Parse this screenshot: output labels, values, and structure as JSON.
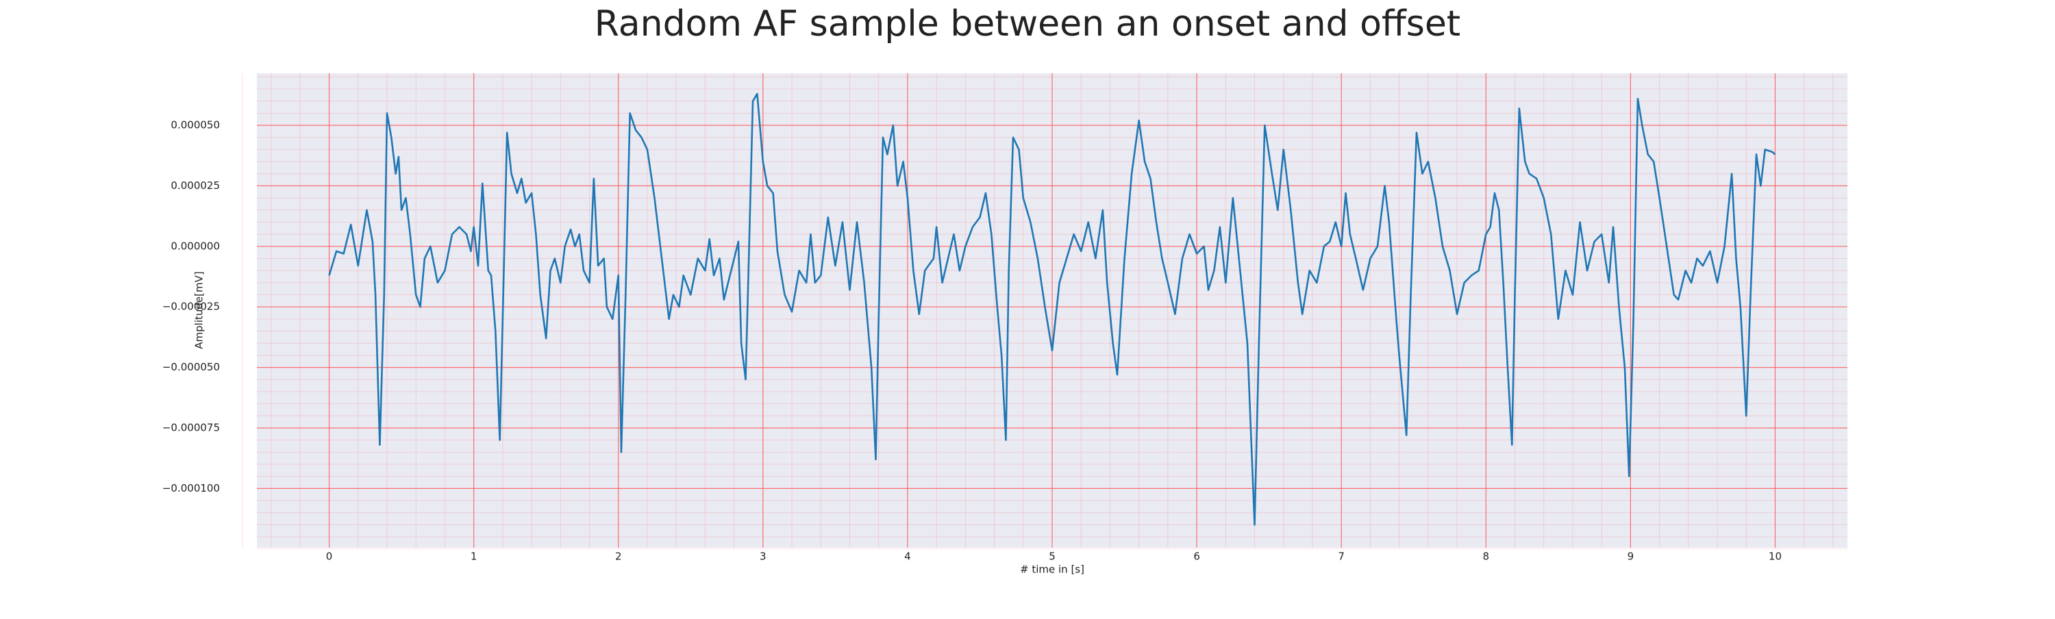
{
  "chart_data": {
    "type": "line",
    "title": "Random AF sample between an onset and offset",
    "xlabel": "# time in [s]",
    "ylabel": "Amplitude[mV]",
    "color": "#1f77b4",
    "background": "#eaeaf2",
    "grid": true,
    "grid_color": "#ff4d4d",
    "xlim": [
      -0.5,
      10.5
    ],
    "ylim": [
      -0.0001245,
      7.15e-05
    ],
    "xticks": [
      0,
      1,
      2,
      3,
      4,
      5,
      6,
      7,
      8,
      9,
      10
    ],
    "yticks": [
      {
        "value": -0.0001,
        "label": "−0.000100"
      },
      {
        "value": -7.5e-05,
        "label": "−0.000075"
      },
      {
        "value": -5e-05,
        "label": "−0.000050"
      },
      {
        "value": -2.5e-05,
        "label": "−0.000025"
      },
      {
        "value": 0,
        "label": "0.000000"
      },
      {
        "value": 2.5e-05,
        "label": "0.000025"
      },
      {
        "value": 5e-05,
        "label": "0.000050"
      }
    ],
    "x": [
      0,
      0.05,
      0.1,
      0.15,
      0.2,
      0.26,
      0.3,
      0.32,
      0.35,
      0.38,
      0.4,
      0.43,
      0.46,
      0.48,
      0.5,
      0.53,
      0.56,
      0.6,
      0.63,
      0.66,
      0.7,
      0.75,
      0.8,
      0.85,
      0.9,
      0.95,
      0.98,
      1.0,
      1.03,
      1.06,
      1.1,
      1.12,
      1.15,
      1.18,
      1.2,
      1.23,
      1.26,
      1.3,
      1.33,
      1.36,
      1.4,
      1.43,
      1.46,
      1.5,
      1.53,
      1.56,
      1.6,
      1.63,
      1.67,
      1.7,
      1.73,
      1.76,
      1.8,
      1.83,
      1.86,
      1.9,
      1.92,
      1.96,
      2.0,
      2.02,
      2.05,
      2.08,
      2.12,
      2.16,
      2.2,
      2.25,
      2.3,
      2.35,
      2.38,
      2.42,
      2.45,
      2.5,
      2.55,
      2.6,
      2.63,
      2.66,
      2.7,
      2.73,
      2.78,
      2.83,
      2.85,
      2.88,
      2.9,
      2.93,
      2.96,
      3.0,
      3.03,
      3.07,
      3.1,
      3.15,
      3.2,
      3.25,
      3.3,
      3.33,
      3.36,
      3.4,
      3.45,
      3.5,
      3.55,
      3.6,
      3.65,
      3.7,
      3.75,
      3.78,
      3.8,
      3.83,
      3.86,
      3.9,
      3.93,
      3.97,
      4.0,
      4.04,
      4.08,
      4.12,
      4.18,
      4.2,
      4.24,
      4.28,
      4.32,
      4.36,
      4.4,
      4.45,
      4.5,
      4.54,
      4.58,
      4.62,
      4.65,
      4.68,
      4.7,
      4.73,
      4.77,
      4.8,
      4.85,
      4.9,
      4.95,
      5.0,
      5.05,
      5.1,
      5.15,
      5.2,
      5.25,
      5.3,
      5.35,
      5.38,
      5.42,
      5.45,
      5.5,
      5.55,
      5.6,
      5.64,
      5.68,
      5.72,
      5.76,
      5.8,
      5.85,
      5.9,
      5.95,
      6.0,
      6.05,
      6.08,
      6.12,
      6.16,
      6.2,
      6.25,
      6.3,
      6.35,
      6.4,
      6.43,
      6.47,
      6.52,
      6.56,
      6.6,
      6.65,
      6.7,
      6.73,
      6.78,
      6.83,
      6.88,
      6.92,
      6.96,
      7.0,
      7.03,
      7.06,
      7.1,
      7.15,
      7.2,
      7.25,
      7.3,
      7.33,
      7.38,
      7.4,
      7.45,
      7.48,
      7.52,
      7.56,
      7.6,
      7.65,
      7.7,
      7.75,
      7.8,
      7.85,
      7.9,
      7.95,
      8.0,
      8.03,
      8.06,
      8.09,
      8.12,
      8.15,
      8.18,
      8.2,
      8.23,
      8.27,
      8.3,
      8.35,
      8.4,
      8.45,
      8.5,
      8.55,
      8.6,
      8.65,
      8.7,
      8.75,
      8.8,
      8.85,
      8.88,
      8.92,
      8.96,
      8.99,
      9.02,
      9.05,
      9.08,
      9.12,
      9.16,
      9.2,
      9.25,
      9.3,
      9.33,
      9.38,
      9.42,
      9.46,
      9.5,
      9.55,
      9.6,
      9.65,
      9.7,
      9.73,
      9.76,
      9.8,
      9.83,
      9.87,
      9.9,
      9.93,
      9.98,
      10.0
    ],
    "values": [
      -1.2e-05,
      -2e-06,
      -3e-06,
      9e-06,
      -8e-06,
      1.5e-05,
      2e-06,
      -2e-05,
      -8.2e-05,
      -2e-05,
      5.5e-05,
      4.5e-05,
      3e-05,
      3.7e-05,
      1.5e-05,
      2e-05,
      5e-06,
      -2e-05,
      -2.5e-05,
      -5e-06,
      0,
      -1.5e-05,
      -1e-05,
      5e-06,
      8e-06,
      5e-06,
      -2e-06,
      8e-06,
      -8e-06,
      2.6e-05,
      -1e-05,
      -1.2e-05,
      -3.5e-05,
      -8e-05,
      -3e-05,
      4.7e-05,
      3e-05,
      2.2e-05,
      2.8e-05,
      1.8e-05,
      2.2e-05,
      5e-06,
      -2e-05,
      -3.8e-05,
      -1e-05,
      -5e-06,
      -1.5e-05,
      0,
      7e-06,
      0,
      5e-06,
      -1e-05,
      -1.5e-05,
      2.8e-05,
      -8e-06,
      -5e-06,
      -2.5e-05,
      -3e-05,
      -1.2e-05,
      -8.5e-05,
      -2e-05,
      5.5e-05,
      4.8e-05,
      4.5e-05,
      4e-05,
      2e-05,
      -5e-06,
      -3e-05,
      -2e-05,
      -2.5e-05,
      -1.2e-05,
      -2e-05,
      -5e-06,
      -1e-05,
      3e-06,
      -1.2e-05,
      -5e-06,
      -2.2e-05,
      -1e-05,
      2e-06,
      -4e-05,
      -5.5e-05,
      -1e-05,
      6e-05,
      6.3e-05,
      3.5e-05,
      2.5e-05,
      2.2e-05,
      -2e-06,
      -2e-05,
      -2.7e-05,
      -1e-05,
      -1.5e-05,
      5e-06,
      -1.5e-05,
      -1.2e-05,
      1.2e-05,
      -8e-06,
      1e-05,
      -1.8e-05,
      1e-05,
      -1.5e-05,
      -5e-05,
      -8.8e-05,
      -3e-05,
      4.5e-05,
      3.8e-05,
      5e-05,
      2.5e-05,
      3.5e-05,
      2e-05,
      -1e-05,
      -2.8e-05,
      -1e-05,
      -5e-06,
      8e-06,
      -1.5e-05,
      -5e-06,
      5e-06,
      -1e-05,
      0,
      8e-06,
      1.2e-05,
      2.2e-05,
      5e-06,
      -2.5e-05,
      -4.5e-05,
      -8e-05,
      -1e-05,
      4.5e-05,
      4e-05,
      2e-05,
      1e-05,
      -5e-06,
      -2.5e-05,
      -4.3e-05,
      -1.5e-05,
      -5e-06,
      5e-06,
      -2e-06,
      1e-05,
      -5e-06,
      1.5e-05,
      -1.5e-05,
      -4e-05,
      -5.3e-05,
      -5e-06,
      3e-05,
      5.2e-05,
      3.5e-05,
      2.8e-05,
      1e-05,
      -5e-06,
      -1.5e-05,
      -2.8e-05,
      -5e-06,
      5e-06,
      -3e-06,
      0,
      -1.8e-05,
      -1e-05,
      8e-06,
      -1.5e-05,
      2e-05,
      -1e-05,
      -4e-05,
      -0.000115,
      -4e-05,
      5e-05,
      3e-05,
      1.5e-05,
      4e-05,
      1.5e-05,
      -1.5e-05,
      -2.8e-05,
      -1e-05,
      -1.5e-05,
      0,
      2e-06,
      1e-05,
      0,
      2.2e-05,
      5e-06,
      -5e-06,
      -1.8e-05,
      -5e-06,
      0,
      2.5e-05,
      1e-05,
      -3e-05,
      -4.5e-05,
      -7.8e-05,
      -2e-05,
      4.7e-05,
      3e-05,
      3.5e-05,
      2e-05,
      0,
      -1e-05,
      -2.8e-05,
      -1.5e-05,
      -1.2e-05,
      -1e-05,
      5e-06,
      8e-06,
      2.2e-05,
      1.5e-05,
      -1.5e-05,
      -5e-05,
      -8.2e-05,
      -2e-05,
      5.7e-05,
      3.5e-05,
      3e-05,
      2.8e-05,
      2e-05,
      5e-06,
      -3e-05,
      -1e-05,
      -2e-05,
      1e-05,
      -1e-05,
      2e-06,
      5e-06,
      -1.5e-05,
      8e-06,
      -2.5e-05,
      -5e-05,
      -9.5e-05,
      -3e-05,
      6.1e-05,
      5e-05,
      3.8e-05,
      3.5e-05,
      2e-05,
      0,
      -2e-05,
      -2.2e-05,
      -1e-05,
      -1.5e-05,
      -5e-06,
      -8e-06,
      -2e-06,
      -1.5e-05,
      0,
      3e-05,
      -5e-06,
      -2.5e-05,
      -7e-05,
      -2e-05,
      3.8e-05,
      2.5e-05,
      4e-05,
      3.9e-05,
      3.8e-05
    ]
  }
}
